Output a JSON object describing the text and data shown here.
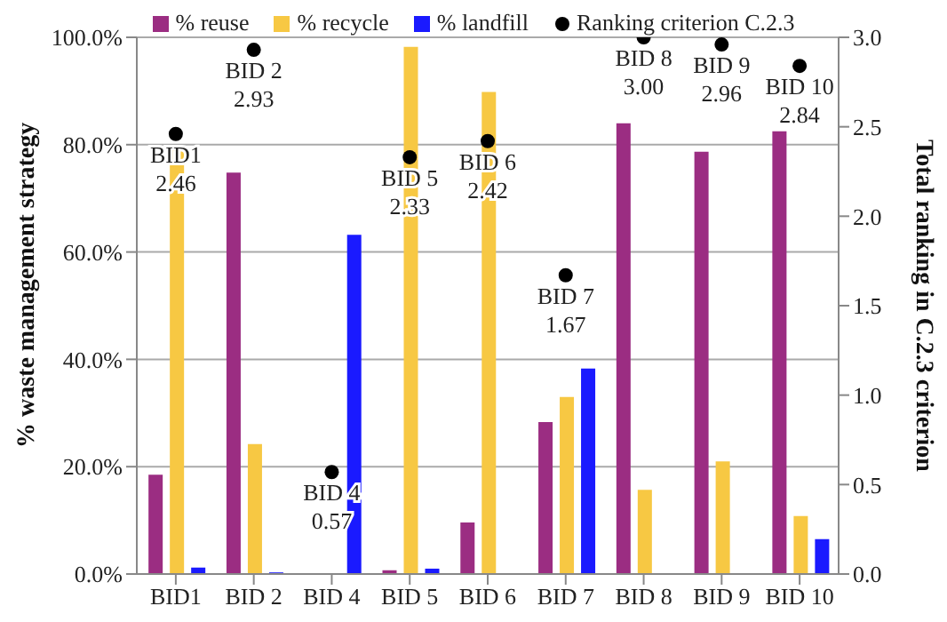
{
  "chart_data": {
    "type": "bar",
    "categories": [
      "BID1",
      "BID 2",
      "BID 4",
      "BID 5",
      "BID 6",
      "BID 7",
      "BID 8",
      "BID 9",
      "BID 10"
    ],
    "series": [
      {
        "name": "% reuse",
        "color": "#9b2d82",
        "values": [
          18.5,
          74.8,
          0,
          0.7,
          9.6,
          28.3,
          84,
          78.7,
          82.5
        ]
      },
      {
        "name": "% recycle",
        "color": "#f7c843",
        "values": [
          79.6,
          24.2,
          0,
          98.2,
          89.8,
          33,
          15.7,
          21,
          10.8
        ]
      },
      {
        "name": "% landfill",
        "color": "#1a1aff",
        "values": [
          1.2,
          0.3,
          63.2,
          1,
          0,
          38.3,
          0,
          0,
          6.5
        ]
      },
      {
        "name": "Ranking criterion C.2.3",
        "type": "scatter",
        "axis": "y2",
        "color": "#000000",
        "marker": "circle",
        "values": [
          2.46,
          2.93,
          0.57,
          2.33,
          2.42,
          1.67,
          3.0,
          2.96,
          2.84
        ],
        "value_labels": [
          "BID1\n2.46",
          "BID 2\n2.93",
          "BID 4\n0.57",
          "BID 5\n2.33",
          "BID 6\n2.42",
          "BID 7\n1.67",
          "BID 8\n3.00",
          "BID 9\n2.96",
          "BID 10\n2.84"
        ]
      }
    ],
    "ylabel": "% waste management strategy",
    "y2label": "Total ranking in C.2.3 criterion",
    "ylim": [
      0,
      100
    ],
    "yticks": [
      {
        "value": 0,
        "label": "0.0%"
      },
      {
        "value": 20,
        "label": "20.0%"
      },
      {
        "value": 40,
        "label": "40.0%"
      },
      {
        "value": 60,
        "label": "60.0%"
      },
      {
        "value": 80,
        "label": "80.0%"
      },
      {
        "value": 100,
        "label": "100.0%"
      }
    ],
    "y2lim": [
      0,
      3
    ],
    "y2ticks": [
      {
        "value": 0,
        "label": "0.0"
      },
      {
        "value": 0.5,
        "label": "0.5"
      },
      {
        "value": 1,
        "label": "1.0"
      },
      {
        "value": 1.5,
        "label": "1.5"
      },
      {
        "value": 2,
        "label": "2.0"
      },
      {
        "value": 2.5,
        "label": "2.5"
      },
      {
        "value": 3,
        "label": "3.0"
      }
    ],
    "grid": "y",
    "legend": "top"
  }
}
